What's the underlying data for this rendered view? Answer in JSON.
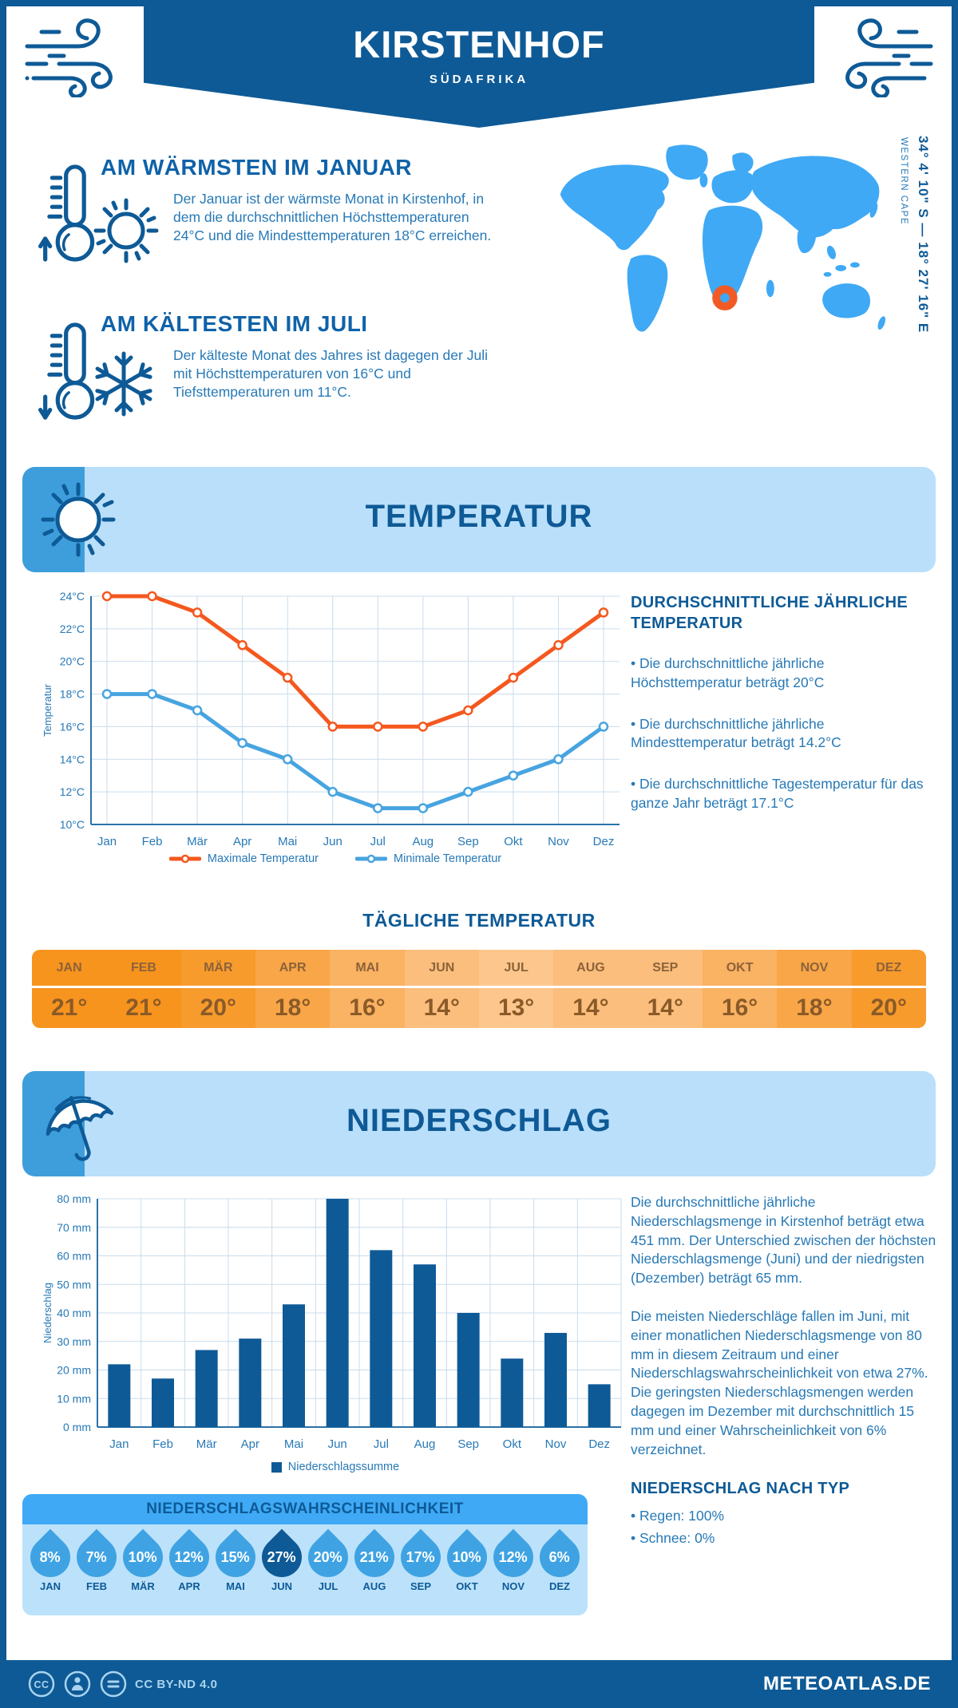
{
  "header": {
    "title": "KIRSTENHOF",
    "subtitle": "SÜDAFRIKA"
  },
  "warmest": {
    "heading": "AM WÄRMSTEN IM JANUAR",
    "text": "Der Januar ist der wärmste Monat in Kirstenhof, in dem die durchschnittlichen Höchsttemperaturen 24°C und die Mindesttemperaturen 18°C erreichen."
  },
  "coldest": {
    "heading": "AM KÄLTESTEN IM JULI",
    "text": "Der kälteste Monat des Jahres ist dagegen der Juli mit Höchsttemperaturen von 16°C und Tiefsttemperaturen um 11°C."
  },
  "map": {
    "coords": "34° 4' 10\" S — 18° 27' 16\" E",
    "region": "WESTERN CAPE",
    "marker_color": "#f15a24",
    "land_color": "#3fa9f5"
  },
  "temperature_section": {
    "title": "TEMPERATUR",
    "right_heading": "DURCHSCHNITTLICHE JÄHRLICHE TEMPERATUR",
    "bullets": [
      "• Die durchschnittliche jährliche Höchsttemperatur beträgt 20°C",
      "• Die durchschnittliche jährliche Mindesttemperatur beträgt 14.2°C",
      "• Die durchschnittliche Tagestemperatur für das ganze Jahr beträgt 17.1°C"
    ]
  },
  "chart_data": [
    {
      "type": "line",
      "title": "Monatliche Temperatur",
      "categories": [
        "Jan",
        "Feb",
        "Mär",
        "Apr",
        "Mai",
        "Jun",
        "Jul",
        "Aug",
        "Sep",
        "Okt",
        "Nov",
        "Dez"
      ],
      "series": [
        {
          "name": "Maximale Temperatur",
          "color": "#f4581f",
          "values": [
            24,
            24,
            23,
            21,
            19,
            16,
            16,
            16,
            17,
            19,
            21,
            23
          ]
        },
        {
          "name": "Minimale Temperatur",
          "color": "#47a4e0",
          "values": [
            18,
            18,
            17,
            15,
            14,
            12,
            11,
            11,
            12,
            13,
            14,
            16
          ]
        }
      ],
      "ylabel": "Temperatur",
      "ylim": [
        10,
        24
      ],
      "ytick_step": 2,
      "ytick_suffix": "°C",
      "grid": true,
      "legend_position": "bottom"
    },
    {
      "type": "bar",
      "title": "Monatlicher Niederschlag",
      "categories": [
        "Jan",
        "Feb",
        "Mär",
        "Apr",
        "Mai",
        "Jun",
        "Jul",
        "Aug",
        "Sep",
        "Okt",
        "Nov",
        "Dez"
      ],
      "values": [
        22,
        17,
        27,
        31,
        43,
        80,
        62,
        57,
        40,
        24,
        33,
        15
      ],
      "series_name": "Niederschlagssumme",
      "color": "#0e5a96",
      "ylabel": "Niederschlag",
      "ylim": [
        0,
        80
      ],
      "ytick_step": 10,
      "ytick_suffix": " mm",
      "grid": true,
      "legend_position": "bottom"
    }
  ],
  "daily_table": {
    "title": "TÄGLICHE TEMPERATUR",
    "months": [
      "JAN",
      "FEB",
      "MÄR",
      "APR",
      "MAI",
      "JUN",
      "JUL",
      "AUG",
      "SEP",
      "OKT",
      "NOV",
      "DEZ"
    ],
    "values": [
      "21°",
      "21°",
      "20°",
      "18°",
      "16°",
      "14°",
      "13°",
      "14°",
      "14°",
      "16°",
      "18°",
      "20°"
    ],
    "cell_colors": [
      "#f7941e",
      "#f7941e",
      "#f89b2d",
      "#f9a648",
      "#fab263",
      "#fbbe7d",
      "#fcc68c",
      "#fbbe7d",
      "#fbbe7d",
      "#fab263",
      "#f9a648",
      "#f89b2d"
    ]
  },
  "precip_section": {
    "title": "NIEDERSCHLAG",
    "para1": "Die durchschnittliche jährliche Niederschlagsmenge in Kirstenhof beträgt etwa 451 mm. Der Unterschied zwischen der höchsten Niederschlagsmenge (Juni) und der niedrigsten (Dezember) beträgt 65 mm.",
    "para2": "Die meisten Niederschläge fallen im Juni, mit einer monatlichen Niederschlagsmenge von 80 mm in diesem Zeitraum und einer Niederschlagswahrscheinlichkeit von etwa 27%. Die geringsten Niederschlagsmengen werden dagegen im Dezember mit durchschnittlich 15 mm und einer Wahrscheinlichkeit von 6% verzeichnet.",
    "type_heading": "NIEDERSCHLAG NACH TYP",
    "type_bullets": [
      "• Regen: 100%",
      "• Schnee: 0%"
    ]
  },
  "probability": {
    "title": "NIEDERSCHLAGSWAHRSCHEINLICHKEIT",
    "months": [
      "JAN",
      "FEB",
      "MÄR",
      "APR",
      "MAI",
      "JUN",
      "JUL",
      "AUG",
      "SEP",
      "OKT",
      "NOV",
      "DEZ"
    ],
    "values": [
      "8%",
      "7%",
      "10%",
      "12%",
      "15%",
      "27%",
      "20%",
      "21%",
      "17%",
      "10%",
      "12%",
      "6%"
    ],
    "highlight_index": 5,
    "drop_color": "#3fa3e3",
    "drop_highlight_color": "#0e5a96"
  },
  "footer": {
    "license": "CC BY-ND 4.0",
    "site": "METEOATLAS.DE"
  },
  "colors": {
    "primary": "#0e5a96",
    "body_text": "#2779b6",
    "light_panel": "#b9dffa",
    "medium_blue": "#3fa9f5",
    "grid": "#c9dcec",
    "orange_line": "#f4581f",
    "blue_line": "#47a4e0"
  }
}
